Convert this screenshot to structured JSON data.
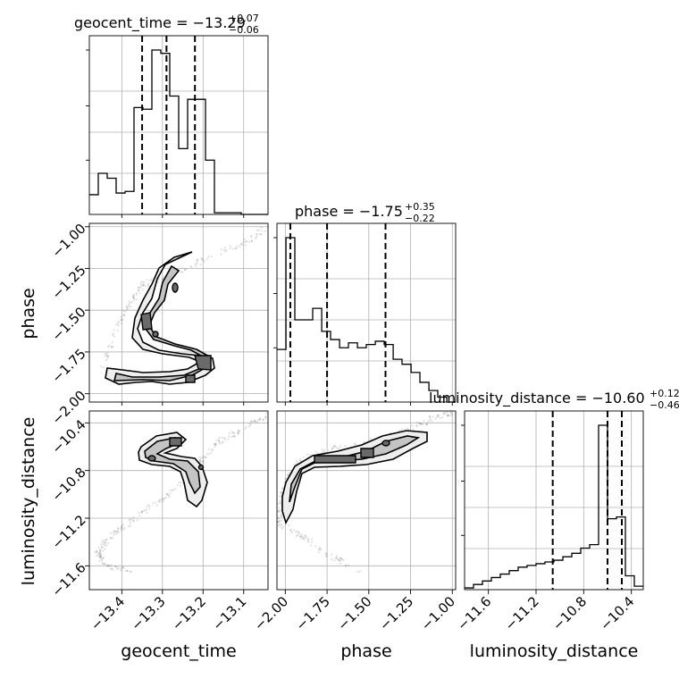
{
  "chart_data": {
    "type": "corner",
    "parameters": [
      "geocent_time",
      "phase",
      "luminosity_distance"
    ],
    "titles": [
      {
        "parameter": "geocent_time",
        "prefix": "geocent_time = ",
        "median": "−13.29",
        "upper": "+0.07",
        "lower": "−0.06"
      },
      {
        "parameter": "phase",
        "prefix": "phase = ",
        "median": "−1.75",
        "upper": "+0.35",
        "lower": "−0.22"
      },
      {
        "parameter": "luminosity_distance",
        "prefix": "luminosity_distance = ",
        "median": "−10.60",
        "upper": "+0.12",
        "lower": "−0.46"
      }
    ],
    "axes": {
      "geocent_time": {
        "range": [
          -13.48,
          -13.04
        ],
        "ticks": [
          -13.4,
          -13.3,
          -13.2,
          -13.1
        ],
        "tick_labels": [
          "−13.4",
          "−13.3",
          "−13.2",
          "−13.1"
        ]
      },
      "phase": {
        "range": [
          -2.05,
          -0.98
        ],
        "ticks": [
          -2.0,
          -1.75,
          -1.5,
          -1.25,
          -1.0
        ],
        "tick_labels": [
          "−2.00",
          "−1.75",
          "−1.50",
          "−1.25",
          "−1.00"
        ]
      },
      "luminosity_distance": {
        "range": [
          -11.8,
          -10.3
        ],
        "ticks": [
          -11.6,
          -11.2,
          -10.8,
          -10.4
        ],
        "tick_labels": [
          "−11.6",
          "−11.2",
          "−10.8",
          "−10.4"
        ]
      }
    },
    "diagonal_histograms": [
      {
        "parameter": "geocent_time",
        "quantiles": [
          -13.35,
          -13.29,
          -13.22
        ],
        "bin_edges": [
          -13.48,
          -13.458,
          -13.436,
          -13.414,
          -13.392,
          -13.37,
          -13.348,
          -13.326,
          -13.304,
          -13.282,
          -13.26,
          -13.238,
          -13.216,
          -13.194,
          -13.172,
          -13.15,
          -13.128,
          -13.106,
          -13.084,
          -13.062,
          -13.04
        ],
        "counts": [
          0.12,
          0.25,
          0.22,
          0.13,
          0.14,
          0.65,
          0.64,
          1.0,
          0.98,
          0.72,
          0.4,
          0.7,
          0.7,
          0.33,
          0.01,
          0.01,
          0.01,
          0.0,
          0.0,
          0.0
        ]
      },
      {
        "parameter": "phase",
        "quantiles": [
          -1.97,
          -1.75,
          -1.4
        ],
        "bin_edges": [
          -2.05,
          -1.996,
          -1.943,
          -1.889,
          -1.836,
          -1.782,
          -1.729,
          -1.675,
          -1.622,
          -1.568,
          -1.515,
          -1.461,
          -1.408,
          -1.354,
          -1.301,
          -1.247,
          -1.194,
          -1.14,
          -1.087,
          -1.033,
          -0.98
        ],
        "counts": [
          0.32,
          1.0,
          0.5,
          0.5,
          0.57,
          0.43,
          0.38,
          0.33,
          0.36,
          0.33,
          0.35,
          0.37,
          0.35,
          0.26,
          0.23,
          0.18,
          0.12,
          0.07,
          0.03,
          0.0
        ]
      },
      {
        "parameter": "luminosity_distance",
        "quantiles": [
          -11.06,
          -10.6,
          -10.48
        ],
        "bin_edges": [
          -11.8,
          -11.725,
          -11.65,
          -11.575,
          -11.5,
          -11.425,
          -11.35,
          -11.275,
          -11.2,
          -11.125,
          -11.05,
          -10.975,
          -10.9,
          -10.825,
          -10.75,
          -10.675,
          -10.6,
          -10.525,
          -10.45,
          -10.375,
          -10.3
        ],
        "counts": [
          0.01,
          0.03,
          0.05,
          0.07,
          0.09,
          0.11,
          0.13,
          0.14,
          0.15,
          0.16,
          0.17,
          0.19,
          0.21,
          0.24,
          0.26,
          0.95,
          0.41,
          0.42,
          0.08,
          0.02
        ]
      }
    ],
    "scatter_paths": [
      {
        "x": "geocent_time",
        "y": "phase",
        "points": [
          [
            -13.45,
            -1.85
          ],
          [
            -13.41,
            -1.6
          ],
          [
            -13.38,
            -1.45
          ],
          [
            -13.35,
            -1.35
          ],
          [
            -13.29,
            -1.3
          ],
          [
            -13.2,
            -1.2
          ],
          [
            -13.1,
            -1.1
          ],
          [
            -13.04,
            -1.0
          ]
        ]
      },
      {
        "x": "geocent_time",
        "y": "luminosity_distance",
        "points": [
          [
            -13.37,
            -11.65
          ],
          [
            -13.44,
            -11.6
          ],
          [
            -13.46,
            -11.5
          ],
          [
            -13.44,
            -11.4
          ],
          [
            -13.4,
            -11.28
          ],
          [
            -13.34,
            -11.13
          ],
          [
            -13.28,
            -11.0
          ],
          [
            -13.23,
            -10.85
          ],
          [
            -13.2,
            -10.7
          ],
          [
            -13.16,
            -10.55
          ],
          [
            -13.1,
            -10.45
          ],
          [
            -13.04,
            -10.33
          ]
        ]
      },
      {
        "x": "phase",
        "y": "luminosity_distance",
        "points": [
          [
            -1.55,
            -11.65
          ],
          [
            -1.75,
            -11.5
          ],
          [
            -1.9,
            -11.35
          ],
          [
            -2.03,
            -11.25
          ],
          [
            -2.03,
            -11.05
          ],
          [
            -1.98,
            -10.85
          ],
          [
            -1.9,
            -10.7
          ],
          [
            -1.7,
            -10.6
          ],
          [
            -1.45,
            -10.55
          ],
          [
            -1.25,
            -10.45
          ],
          [
            -1.1,
            -10.35
          ],
          [
            -0.99,
            -10.32
          ]
        ]
      }
    ],
    "grid": true,
    "legend": "none"
  }
}
